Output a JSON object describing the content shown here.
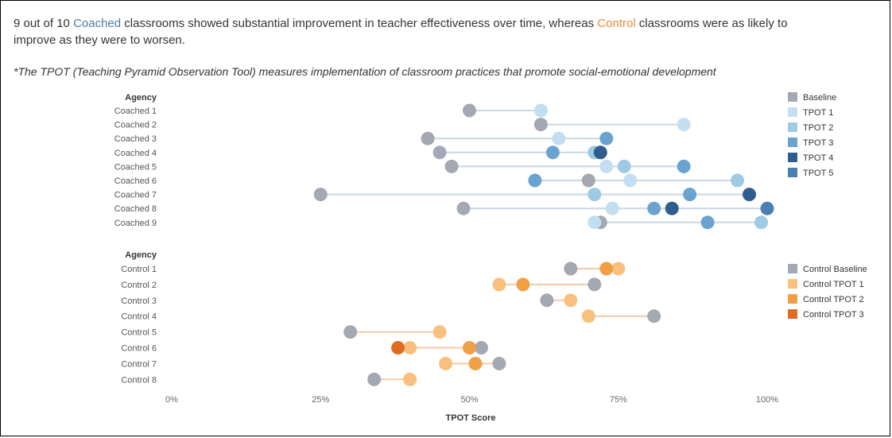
{
  "headline": {
    "part1": "9 out of 10 ",
    "coached_word": "Coached",
    "part2": " classrooms showed substantial improvement in teacher effectiveness over time, whereas ",
    "control_word": "Control",
    "part3": " classrooms were as likely to improve as they were to worsen."
  },
  "note": "*The TPOT (Teaching Pyramid Observation Tool) measures implementation of classroom practices that promote social-emotional development",
  "chart_data": {
    "type": "scatter",
    "xlabel": "TPOT Score",
    "xlim": [
      0,
      100
    ],
    "x_ticks": [
      {
        "value": 0,
        "label": "0%"
      },
      {
        "value": 25,
        "label": "25%"
      },
      {
        "value": 50,
        "label": "50%"
      },
      {
        "value": 75,
        "label": "75%"
      },
      {
        "value": 100,
        "label": "100%"
      }
    ],
    "grid": false,
    "colors": {
      "Baseline": "#a3a8b2",
      "TPOT 1": "#c3def0",
      "TPOT 2": "#9ecae4",
      "TPOT 3": "#6ba3d0",
      "TPOT 4": "#2e5d8e",
      "TPOT 5": "#4a7fb4",
      "Control Baseline": "#a3a8b2",
      "Control TPOT 1": "#f9c07d",
      "Control TPOT 2": "#f09f45",
      "Control TPOT 3": "#e06c22"
    },
    "panels": [
      {
        "header": "Agency",
        "legend_position": "right",
        "rows": [
          "Coached 1",
          "Coached 2",
          "Coached 3",
          "Coached 4",
          "Coached 5",
          "Coached 6",
          "Coached 7",
          "Coached 8",
          "Coached 9"
        ],
        "series": [
          {
            "name": "Baseline",
            "values": [
              50,
              62,
              43,
              45,
              47,
              70,
              25,
              49,
              72
            ]
          },
          {
            "name": "TPOT 1",
            "values": [
              62,
              86,
              65,
              72,
              73,
              77,
              71,
              74,
              71
            ]
          },
          {
            "name": "TPOT 2",
            "values": [
              null,
              null,
              null,
              71,
              76,
              95,
              71,
              null,
              99
            ]
          },
          {
            "name": "TPOT 3",
            "values": [
              null,
              null,
              73,
              64,
              86,
              61,
              87,
              81,
              90
            ]
          },
          {
            "name": "TPOT 4",
            "values": [
              null,
              null,
              null,
              72,
              null,
              null,
              97,
              84,
              null
            ]
          },
          {
            "name": "TPOT 5",
            "values": [
              null,
              null,
              null,
              null,
              null,
              null,
              null,
              100,
              null
            ]
          }
        ]
      },
      {
        "header": "Agency",
        "legend_position": "right",
        "rows": [
          "Control 1",
          "Control 2",
          "Control 3",
          "Control 4",
          "Control 5",
          "Control 6",
          "Control 7",
          "Control 8"
        ],
        "series": [
          {
            "name": "Control Baseline",
            "values": [
              67,
              71,
              63,
              81,
              30,
              52,
              55,
              34
            ]
          },
          {
            "name": "Control TPOT 1",
            "values": [
              75,
              55,
              67,
              70,
              45,
              40,
              46,
              40
            ]
          },
          {
            "name": "Control TPOT 2",
            "values": [
              73,
              59,
              null,
              null,
              null,
              50,
              51,
              null
            ]
          },
          {
            "name": "Control TPOT 3",
            "values": [
              null,
              null,
              null,
              null,
              null,
              38,
              null,
              null
            ]
          }
        ]
      }
    ]
  }
}
